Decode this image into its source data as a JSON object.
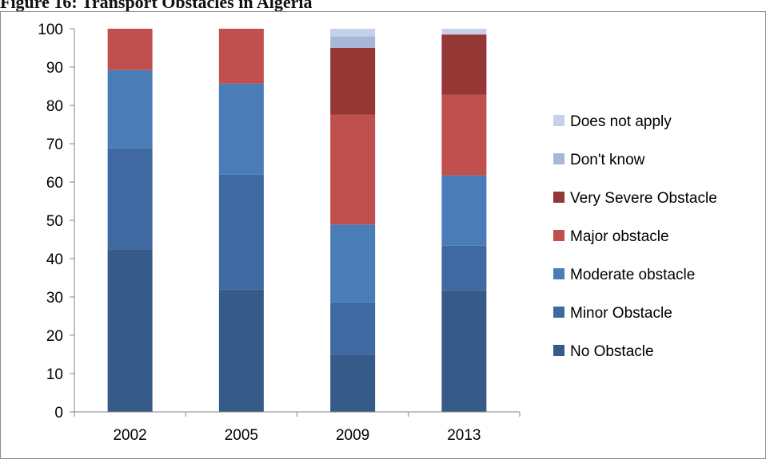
{
  "caption": "Figure 16: Transport Obstacles in Algeria",
  "chart_data": {
    "type": "bar",
    "stacked": true,
    "title": "",
    "xlabel": "",
    "ylabel": "",
    "categories": [
      "2002",
      "2005",
      "2009",
      "2013"
    ],
    "ylim": [
      0,
      100
    ],
    "yticks": [
      0,
      10,
      20,
      30,
      40,
      50,
      60,
      70,
      80,
      90,
      100
    ],
    "grid": false,
    "legend_position": "right",
    "series": [
      {
        "name": "No Obstacle",
        "color": "#375B89",
        "values": [
          42.3,
          31.9,
          14.8,
          31.7
        ]
      },
      {
        "name": "Minor Obstacle",
        "color": "#3F6AA1",
        "values": [
          26.5,
          30.0,
          13.8,
          11.7
        ]
      },
      {
        "name": "Moderate obstacle",
        "color": "#4A7DB8",
        "values": [
          20.4,
          23.8,
          20.3,
          18.3
        ]
      },
      {
        "name": "Major obstacle",
        "color": "#C0504D",
        "values": [
          10.8,
          14.3,
          28.7,
          21.1
        ]
      },
      {
        "name": "Very Severe Obstacle",
        "color": "#953735",
        "values": [
          0,
          0,
          17.4,
          15.7
        ]
      },
      {
        "name": "Don't know",
        "color": "#A8B6D8",
        "values": [
          0,
          0,
          3.0,
          0
        ]
      },
      {
        "name": "Does not apply",
        "color": "#C5D1E8",
        "values": [
          0,
          0,
          2.0,
          1.5
        ]
      }
    ]
  }
}
